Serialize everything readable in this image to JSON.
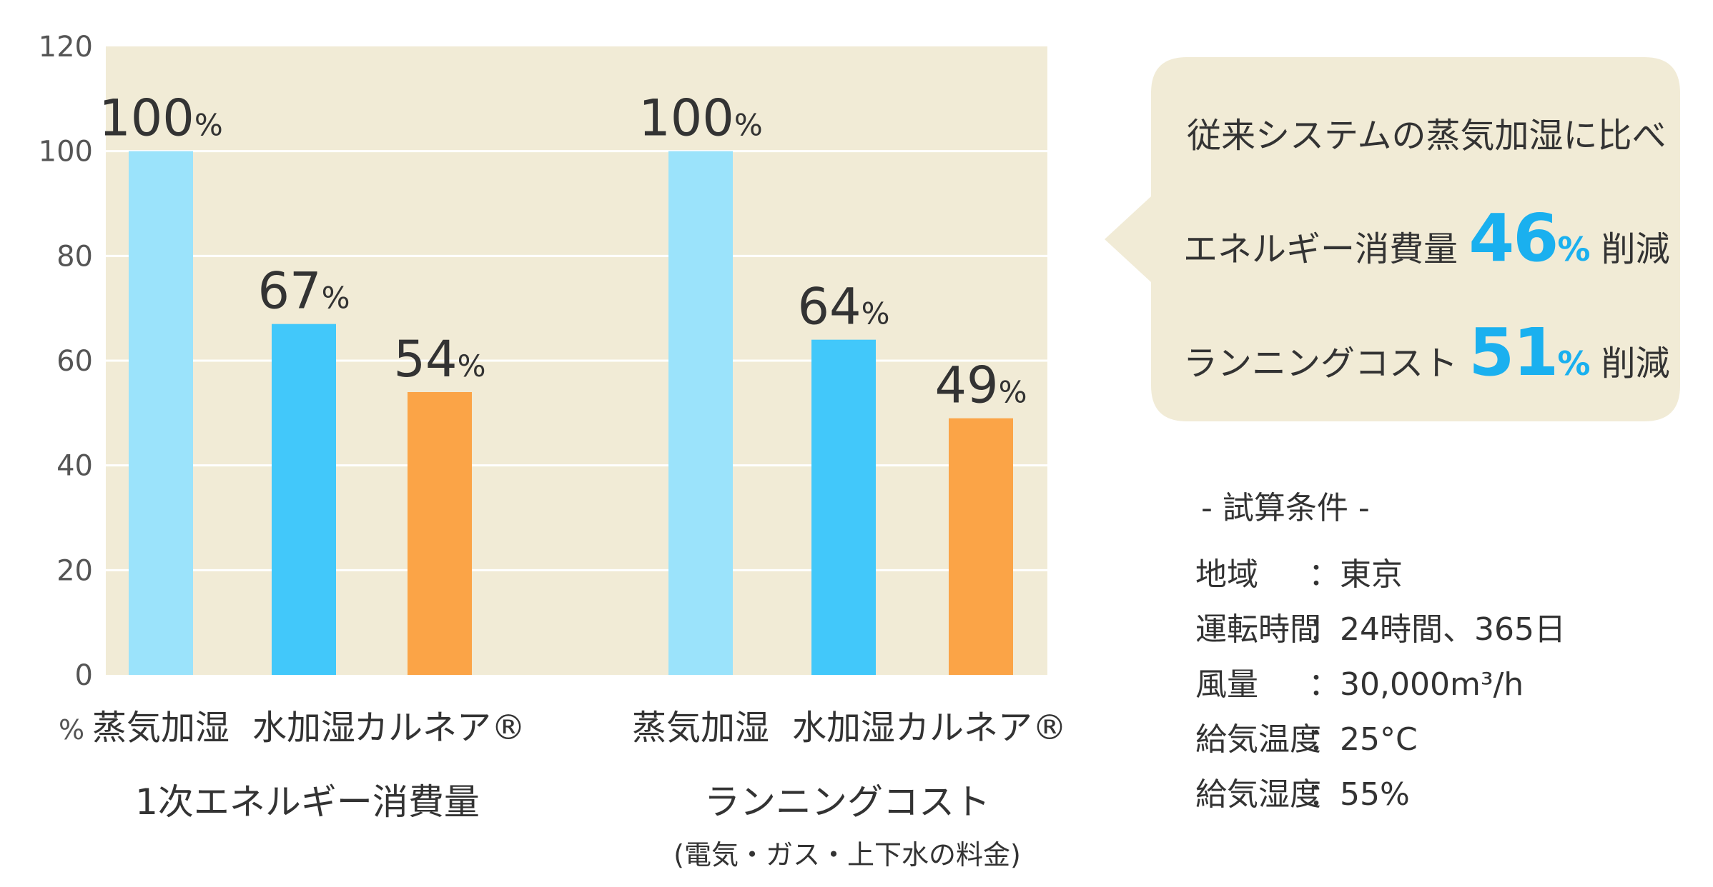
{
  "chart_data": {
    "type": "bar",
    "ylim": [
      0,
      120
    ],
    "yticks": [
      "0",
      "20",
      "40",
      "60",
      "80",
      "100",
      "120"
    ],
    "yunit": "%",
    "grid": true,
    "groups": [
      {
        "label": "1次エネルギー消費量",
        "sublabel": "",
        "categories": [
          "蒸気加湿",
          "水加湿",
          "カルネア®"
        ],
        "values": [
          100,
          67,
          54
        ],
        "value_labels": [
          "100",
          "67",
          "54"
        ]
      },
      {
        "label": "ランニングコスト",
        "sublabel": "(電気・ガス・上下水の料金)",
        "categories": [
          "蒸気加湿",
          "水加湿",
          "カルネア®"
        ],
        "values": [
          100,
          64,
          49
        ],
        "value_labels": [
          "100",
          "64",
          "49"
        ]
      }
    ],
    "value_suffix": "%",
    "colors": [
      "#9be3fb",
      "#42c8fa",
      "#fba447"
    ],
    "plot_background": "#f1ebd6"
  },
  "callout": {
    "line1": "従来システムの蒸気加湿に比べ",
    "line2_prefix": "エネルギー消費量",
    "line2_value": "46",
    "line2_pct": "%",
    "line2_suffix": "削減",
    "line3_prefix": "ランニングコスト",
    "line3_value": "51",
    "line3_pct": "%",
    "line3_suffix": "削減"
  },
  "conditions": {
    "title": "- 試算条件 -",
    "rows": [
      {
        "label": "地域",
        "value": "：東京"
      },
      {
        "label": "運転時間",
        "value": "：24時間、365日"
      },
      {
        "label": "風量",
        "value": "：30,000m³/h"
      },
      {
        "label": "給気温度",
        "value": "：25°C"
      },
      {
        "label": "給気湿度",
        "value": "：55%"
      }
    ]
  }
}
